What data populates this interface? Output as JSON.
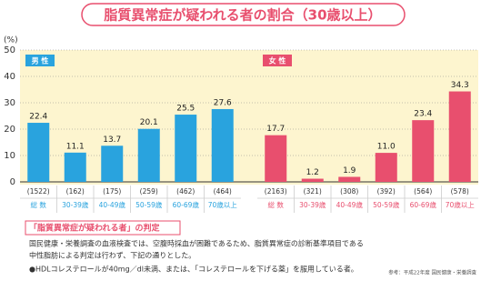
{
  "chart_data": {
    "type": "bar",
    "title": "脂質異常症が疑われる者の割合（30歳以上）",
    "y_label": "(%)",
    "ylim": [
      0,
      50
    ],
    "yticks": [
      0,
      10,
      20,
      30,
      40,
      50
    ],
    "grid": true,
    "series": [
      {
        "name": "男 性",
        "color": "#29a3de",
        "categories": [
          "総 数",
          "30-39歳",
          "40-49歳",
          "50-59歳",
          "60-69歳",
          "70歳以上"
        ],
        "sample_sizes": [
          "(1522)",
          "(162)",
          "(175)",
          "(259)",
          "(462)",
          "(464)"
        ],
        "values": [
          22.4,
          11.1,
          13.7,
          20.1,
          25.5,
          27.6
        ]
      },
      {
        "name": "女 性",
        "color": "#e84f6e",
        "categories": [
          "総 数",
          "30-39歳",
          "40-49歳",
          "50-59歳",
          "60-69歳",
          "70歳以上"
        ],
        "sample_sizes": [
          "(2163)",
          "(321)",
          "(308)",
          "(392)",
          "(564)",
          "(578)"
        ],
        "values": [
          17.7,
          1.2,
          1.9,
          11.0,
          23.4,
          34.3
        ],
        "value_labels": [
          "17.7",
          "1.2",
          "1.9",
          "11.0",
          "23.4",
          "34.3"
        ]
      }
    ]
  },
  "note": {
    "heading": "「脂質異常症が疑われる者」の判定",
    "lines": [
      "国民健康・栄養調査の血液検査では、空腹時採血が困難であるため、脂質異常症の診断基準項目である",
      "中性脂肪による判定は行わず、下記の通りとした。",
      "●HDLコレステロールが40mg／dl未満、または、「コレステロールを下げる薬」を服用している者。"
    ],
    "source": "参考：平成22年度 国民健康・栄養調査"
  }
}
